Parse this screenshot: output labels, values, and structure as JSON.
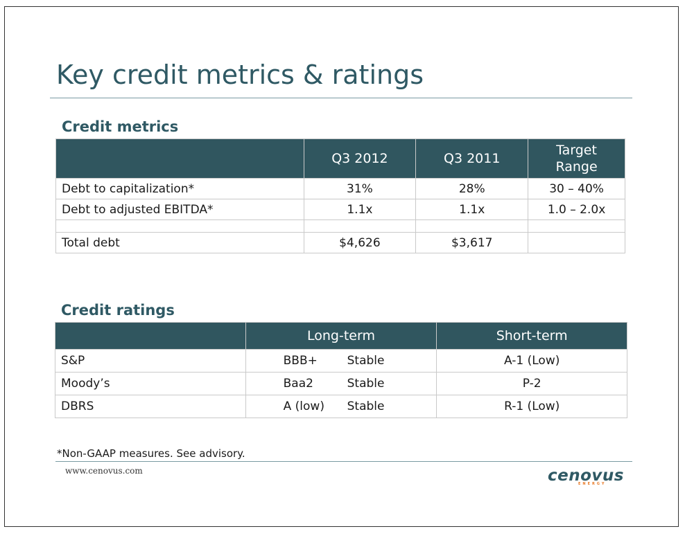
{
  "slide": {
    "title": "Key credit metrics & ratings",
    "footnote": "*Non-GAAP measures. See advisory.",
    "website": "www.cenovus.com",
    "logo": {
      "name": "cenovus",
      "sub": "ENERGY"
    }
  },
  "credit_metrics": {
    "heading": "Credit metrics",
    "columns": [
      "",
      "Q3 2012",
      "Q3 2011",
      "Target Range"
    ],
    "rows": [
      [
        "Debt to capitalization*",
        "31%",
        "28%",
        "30 – 40%"
      ],
      [
        "Debt to adjusted EBITDA*",
        "1.1x",
        "1.1x",
        "1.0 – 2.0x"
      ],
      [
        "",
        "",
        "",
        ""
      ],
      [
        "Total debt",
        "$4,626",
        "$3,617",
        ""
      ]
    ]
  },
  "credit_ratings": {
    "heading": "Credit ratings",
    "columns": [
      "",
      "Long-term",
      "Short-term"
    ],
    "rows": [
      {
        "agency": "S&P",
        "long_rating": "BBB+",
        "long_outlook": "Stable",
        "short": "A-1 (Low)"
      },
      {
        "agency": "Moody’s",
        "long_rating": "Baa2",
        "long_outlook": "Stable",
        "short": "P-2"
      },
      {
        "agency": "DBRS",
        "long_rating": "A (low)",
        "long_outlook": "Stable",
        "short": "R-1 (Low)"
      }
    ]
  },
  "colors": {
    "header_fill": "#30565f",
    "title_text": "#2f5964",
    "logo_accent": "#e87722"
  }
}
